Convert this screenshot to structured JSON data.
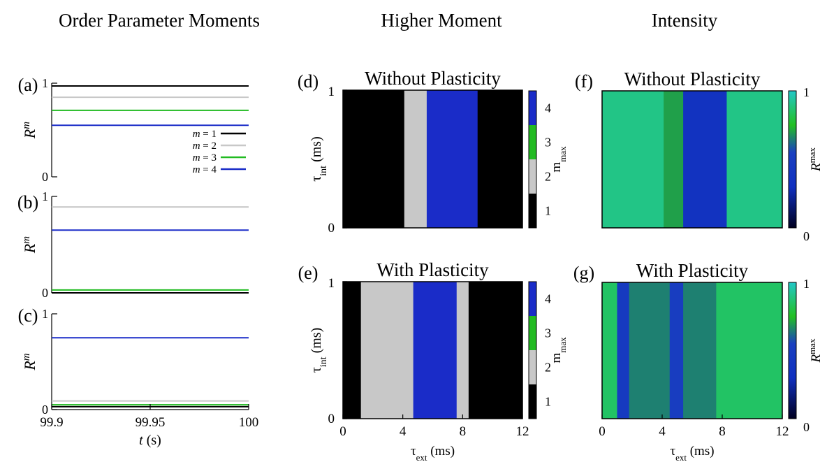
{
  "columns": {
    "left": "Order Parameter Moments",
    "middle": "Higher Moment",
    "right": "Intensity"
  },
  "colors": {
    "m1": "#000000",
    "m2": "#c8c8c8",
    "m3": "#22bb22",
    "m4": "#1a2cc8",
    "intensity_low": "#000030",
    "intensity_mid_blue": "#1030c0",
    "intensity_green": "#22c022",
    "intensity_high": "#22c8c8"
  },
  "chart_data": [
    {
      "panel": "(a)",
      "type": "line",
      "ylabel": "R",
      "ylabel_sup": "m",
      "yticks": [
        "0",
        "1"
      ],
      "ylim": [
        0,
        1
      ],
      "xlim": [
        99.9,
        100
      ],
      "legend": [
        "m = 1",
        "m = 2",
        "m = 3",
        "m = 4"
      ],
      "series": [
        {
          "name": "m = 1",
          "x": [
            99.9,
            100
          ],
          "values": [
            0.97,
            0.97
          ]
        },
        {
          "name": "m = 2",
          "x": [
            99.9,
            100
          ],
          "values": [
            0.85,
            0.85
          ]
        },
        {
          "name": "m = 3",
          "x": [
            99.9,
            100
          ],
          "values": [
            0.71,
            0.71
          ]
        },
        {
          "name": "m = 4",
          "x": [
            99.9,
            100
          ],
          "values": [
            0.55,
            0.55
          ]
        }
      ]
    },
    {
      "panel": "(b)",
      "type": "line",
      "ylabel": "R",
      "ylabel_sup": "m",
      "yticks": [
        "0",
        "1"
      ],
      "ylim": [
        0,
        1
      ],
      "xlim": [
        99.9,
        100
      ],
      "series": [
        {
          "name": "m = 1",
          "x": [
            99.9,
            100
          ],
          "values": [
            0.0,
            0.0
          ]
        },
        {
          "name": "m = 2",
          "x": [
            99.9,
            100
          ],
          "values": [
            0.89,
            0.89
          ]
        },
        {
          "name": "m = 3",
          "x": [
            99.9,
            100
          ],
          "values": [
            0.03,
            0.03
          ]
        },
        {
          "name": "m = 4",
          "x": [
            99.9,
            100
          ],
          "values": [
            0.65,
            0.65
          ]
        }
      ]
    },
    {
      "panel": "(c)",
      "type": "line",
      "ylabel": "R",
      "ylabel_sup": "m",
      "yticks": [
        "0",
        "1"
      ],
      "ylim": [
        0,
        1
      ],
      "xlim": [
        99.9,
        100
      ],
      "xticks": [
        "99.9",
        "99.95",
        "100"
      ],
      "xlabel": "t",
      "xlabel_unit": " (s)",
      "series": [
        {
          "name": "m = 1",
          "x": [
            99.9,
            100
          ],
          "values": [
            0.03,
            0.03
          ]
        },
        {
          "name": "m = 2",
          "x": [
            99.9,
            100
          ],
          "values": [
            0.09,
            0.09
          ]
        },
        {
          "name": "m = 3",
          "x": [
            99.9,
            100
          ],
          "values": [
            0.05,
            0.05
          ]
        },
        {
          "name": "m = 4",
          "x": [
            99.9,
            100
          ],
          "values": [
            0.75,
            0.75
          ]
        }
      ]
    },
    {
      "panel": "(d)",
      "type": "heatmap",
      "title": "Without Plasticity",
      "xlim": [
        0,
        12
      ],
      "ylim": [
        0,
        1
      ],
      "ylabel": "τ",
      "ylabel_sub": "int",
      "ylabel_unit": " (ms)",
      "yticks": [
        "0",
        "1"
      ],
      "colorbar_label": "m",
      "colorbar_sub": "max",
      "colorbar_ticks": [
        "1",
        "2",
        "3",
        "4"
      ],
      "regions": [
        {
          "value": 1,
          "x": [
            0,
            4.1
          ]
        },
        {
          "value": 2,
          "x": [
            4.1,
            5.6
          ]
        },
        {
          "value": 4,
          "x": [
            5.6,
            9.0
          ]
        },
        {
          "value": 1,
          "x": [
            9.0,
            12
          ]
        }
      ]
    },
    {
      "panel": "(e)",
      "type": "heatmap",
      "title": "With Plasticity",
      "xlim": [
        0,
        12
      ],
      "ylim": [
        0,
        1
      ],
      "ylabel": "τ",
      "ylabel_sub": "int",
      "ylabel_unit": " (ms)",
      "yticks": [
        "0",
        "1"
      ],
      "xticks": [
        "0",
        "4",
        "8",
        "12"
      ],
      "xlabel": "τ",
      "xlabel_sub": "ext",
      "xlabel_unit": " (ms)",
      "colorbar_label": "m",
      "colorbar_sub": "max",
      "colorbar_ticks": [
        "1",
        "2",
        "3",
        "4"
      ],
      "regions": [
        {
          "value": 1,
          "x": [
            0,
            1.2
          ]
        },
        {
          "value": 2,
          "x": [
            1.2,
            4.7
          ]
        },
        {
          "value": 4,
          "x": [
            4.7,
            7.6
          ]
        },
        {
          "value": 2,
          "x": [
            7.6,
            8.4
          ]
        },
        {
          "value": 1,
          "x": [
            8.4,
            12
          ]
        }
      ]
    },
    {
      "panel": "(f)",
      "type": "heatmap",
      "title": "Without Plasticity",
      "xlim": [
        0,
        12
      ],
      "ylim": [
        0,
        1
      ],
      "colorbar_label": "R",
      "colorbar_sup": "max",
      "colorbar_ticks": [
        "0",
        "1"
      ],
      "regions": [
        {
          "value": 0.9,
          "x": [
            0,
            4.1
          ]
        },
        {
          "value": 0.7,
          "x": [
            4.1,
            5.4
          ]
        },
        {
          "value": 0.35,
          "x": [
            5.4,
            8.3
          ]
        },
        {
          "value": 0.9,
          "x": [
            8.3,
            12
          ]
        }
      ]
    },
    {
      "panel": "(g)",
      "type": "heatmap",
      "title": "With Plasticity",
      "xlim": [
        0,
        12
      ],
      "ylim": [
        0,
        1
      ],
      "xticks": [
        "0",
        "4",
        "8",
        "12"
      ],
      "xlabel": "τ",
      "xlabel_sub": "ext",
      "xlabel_unit": " (ms)",
      "colorbar_label": "R",
      "colorbar_sup": "max",
      "colorbar_ticks": [
        "0",
        "1"
      ],
      "regions": [
        {
          "value": 0.85,
          "x": [
            0,
            1.0
          ]
        },
        {
          "value": 0.45,
          "x": [
            1.0,
            1.8
          ]
        },
        {
          "value": 0.65,
          "x": [
            1.8,
            4.5
          ]
        },
        {
          "value": 0.5,
          "x": [
            4.5,
            5.4
          ]
        },
        {
          "value": 0.65,
          "x": [
            5.4,
            7.6
          ]
        },
        {
          "value": 0.85,
          "x": [
            7.6,
            12
          ]
        }
      ]
    }
  ]
}
